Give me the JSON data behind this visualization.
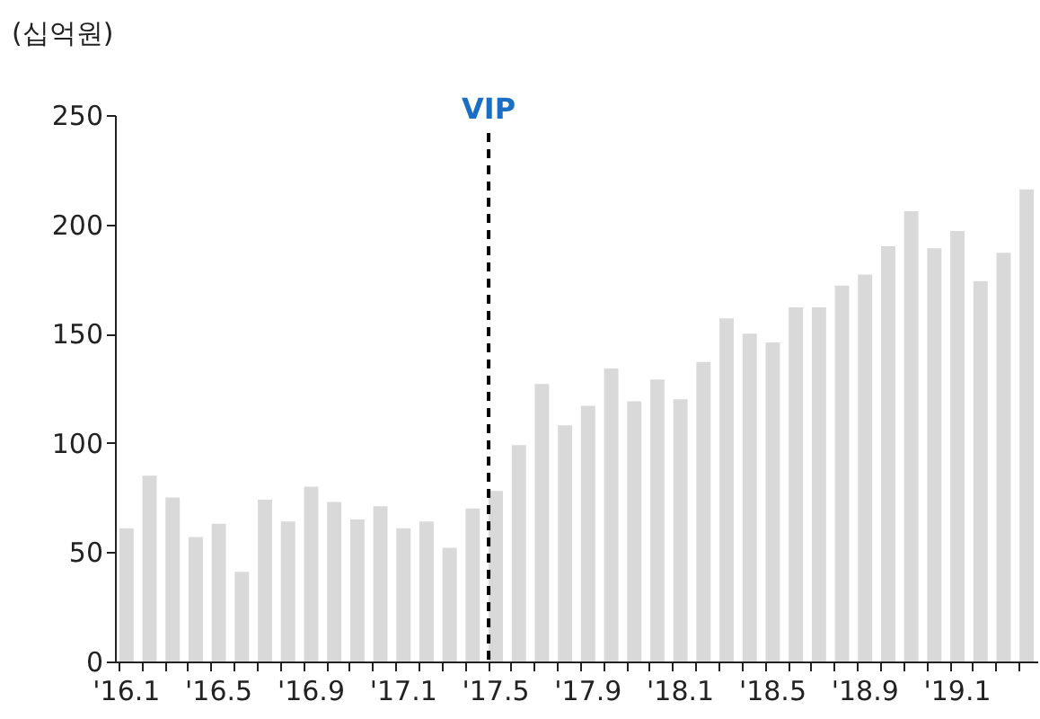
{
  "chart_data": {
    "type": "bar",
    "ylabel": "(십억원)",
    "categories": [
      "'16.1",
      null,
      null,
      null,
      "'16.5",
      null,
      null,
      null,
      "'16.9",
      null,
      null,
      null,
      "'17.1",
      null,
      null,
      null,
      "'17.5",
      null,
      null,
      null,
      "'17.9",
      null,
      null,
      null,
      "'18.1",
      null,
      null,
      null,
      "'18.5",
      null,
      null,
      null,
      "'18.9",
      null,
      null,
      null,
      "'19.1",
      null,
      null,
      null
    ],
    "values": [
      61,
      85,
      75,
      57,
      63,
      41,
      74,
      64,
      80,
      73,
      65,
      71,
      61,
      64,
      52,
      70,
      78,
      99,
      127,
      108,
      117,
      134,
      119,
      129,
      120,
      137,
      157,
      150,
      146,
      162,
      162,
      172,
      177,
      190,
      206,
      189,
      197,
      174,
      187,
      216
    ],
    "color": "#d9d9d9",
    "ylim": [
      0,
      250
    ],
    "yticks": [
      0,
      50,
      100,
      150,
      200,
      250
    ],
    "grid": false,
    "ref_lines": [
      {
        "axis": "x",
        "value": "'17.5",
        "label": "VIP",
        "color": "#000000",
        "line_style": "dashed"
      }
    ]
  }
}
